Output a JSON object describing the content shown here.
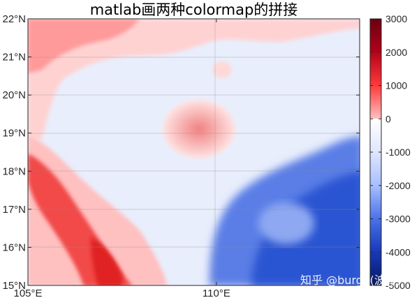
{
  "chart_data": {
    "type": "heatmap",
    "title": "matlab画两种colormap的拼接",
    "x_ticks": [
      "105°E",
      "110°E"
    ],
    "x_tick_values": [
      105,
      110
    ],
    "y_ticks": [
      "15°N",
      "16°N",
      "17°N",
      "18°N",
      "19°N",
      "20°N",
      "21°N",
      "22°N"
    ],
    "y_tick_values": [
      15,
      16,
      17,
      18,
      19,
      20,
      21,
      22
    ],
    "xlim": [
      105,
      113.8
    ],
    "ylim": [
      15,
      22
    ],
    "grid": true,
    "colorbar": {
      "ticks": [
        "3000",
        "2000",
        "1000",
        "0",
        "-1000",
        "-2000",
        "-3000",
        "-4000",
        "-5000"
      ],
      "tick_values": [
        3000,
        2000,
        1000,
        0,
        -1000,
        -2000,
        -3000,
        -4000,
        -5000
      ],
      "range": [
        -5000,
        3000
      ],
      "colors_positive": [
        "#ffffff",
        "#ffc0c0",
        "#ff6060",
        "#e01020",
        "#a00010",
        "#6a0010"
      ],
      "colors_negative": [
        "#eef2ff",
        "#c8d6ff",
        "#7898f0",
        "#2850d8",
        "#0a2aa0",
        "#0a1a6a"
      ]
    }
  },
  "watermark": "知乎 @burge(波哥)"
}
